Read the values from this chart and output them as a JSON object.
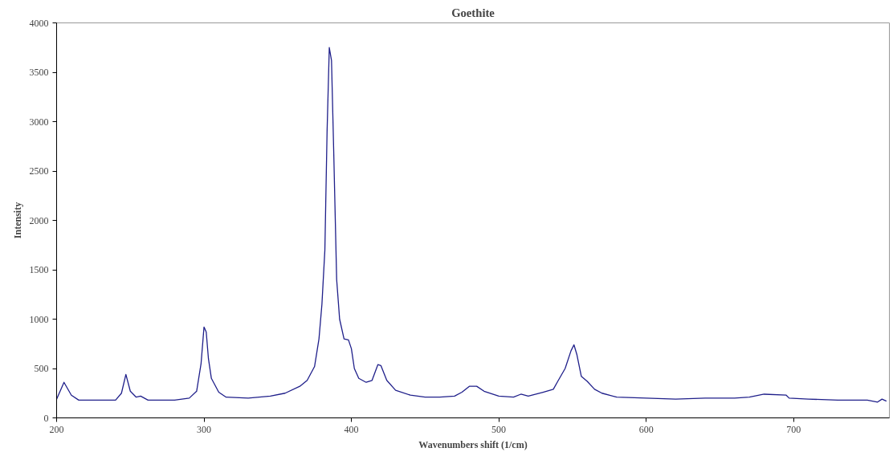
{
  "chart_data": {
    "type": "line",
    "title": "Goethite",
    "xlabel": "Wavenumbers shift (1/cm)",
    "ylabel": "Intensity",
    "xlim": [
      200,
      765
    ],
    "xticks": [
      200,
      300,
      400,
      500,
      600,
      700
    ],
    "ylim": [
      0,
      4000
    ],
    "yticks": [
      0,
      500,
      1000,
      1500,
      2000,
      2500,
      3000,
      3500,
      4000
    ],
    "grid": false,
    "marker": "none",
    "line_style": "solid",
    "series": [
      {
        "color": "#1f1f8a",
        "x": [
          200,
          205,
          210,
          215,
          220,
          230,
          240,
          244,
          247,
          250,
          254,
          257,
          262,
          270,
          280,
          290,
          295,
          298,
          300,
          301.5,
          303,
          305,
          310,
          315,
          330,
          345,
          355,
          365,
          370,
          375,
          378,
          380,
          382,
          383.5,
          385,
          386.5,
          388,
          390,
          392,
          395,
          398,
          400,
          402,
          405,
          410,
          414,
          418,
          420,
          424,
          430,
          440,
          450,
          460,
          470,
          475,
          480,
          485,
          490,
          500,
          510,
          515,
          520,
          530,
          537,
          540,
          545,
          549,
          551,
          553,
          556,
          560,
          565,
          570,
          580,
          600,
          620,
          640,
          660,
          670,
          680,
          695,
          697,
          710,
          730,
          750,
          757,
          760,
          763
        ],
        "values": [
          190,
          360,
          230,
          180,
          180,
          180,
          180,
          250,
          440,
          270,
          210,
          220,
          180,
          180,
          180,
          200,
          270,
          550,
          920,
          870,
          600,
          400,
          260,
          210,
          200,
          220,
          250,
          320,
          380,
          520,
          800,
          1150,
          1700,
          2900,
          3750,
          3620,
          2700,
          1400,
          1000,
          800,
          790,
          700,
          500,
          400,
          360,
          380,
          540,
          530,
          380,
          280,
          230,
          210,
          210,
          220,
          260,
          320,
          320,
          270,
          220,
          210,
          240,
          220,
          260,
          290,
          370,
          500,
          680,
          740,
          640,
          420,
          370,
          290,
          250,
          210,
          200,
          190,
          200,
          200,
          210,
          240,
          230,
          200,
          190,
          180,
          180,
          160,
          190,
          170
        ]
      }
    ]
  }
}
